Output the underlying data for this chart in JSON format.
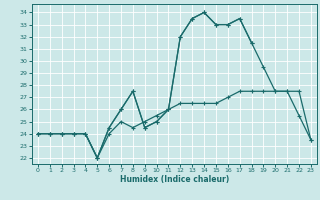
{
  "xlabel": "Humidex (Indice chaleur)",
  "bg_color": "#cce8e8",
  "line_color": "#1a6b6b",
  "grid_color": "#ffffff",
  "xlim": [
    -0.5,
    23.5
  ],
  "ylim": [
    21.5,
    34.7
  ],
  "yticks": [
    22,
    23,
    24,
    25,
    26,
    27,
    28,
    29,
    30,
    31,
    32,
    33,
    34
  ],
  "xticks": [
    0,
    1,
    2,
    3,
    4,
    5,
    6,
    7,
    8,
    9,
    10,
    11,
    12,
    13,
    14,
    15,
    16,
    17,
    18,
    19,
    20,
    21,
    22,
    23
  ],
  "line1_x": [
    0,
    1,
    2,
    3,
    4,
    5,
    6,
    7,
    8,
    9,
    10,
    11,
    12,
    13,
    14,
    15,
    16,
    17,
    18,
    19,
    20,
    21,
    22,
    23
  ],
  "line1_y": [
    24,
    24,
    24,
    24,
    24,
    22,
    24.5,
    26,
    27.5,
    24.5,
    25,
    26,
    32,
    33.5,
    34,
    33,
    33,
    33.5,
    31.5,
    null,
    null,
    null,
    null,
    null
  ],
  "line2_x": [
    0,
    1,
    2,
    3,
    4,
    5,
    6,
    7,
    8,
    9,
    10,
    11,
    12,
    13,
    14,
    15,
    16,
    17,
    18,
    19,
    20,
    21,
    22,
    23
  ],
  "line2_y": [
    24,
    24,
    24,
    24,
    24,
    22,
    24.5,
    26,
    27.5,
    24.5,
    25,
    26,
    32,
    33.5,
    34,
    33,
    33,
    33.5,
    31.5,
    29.5,
    27.5,
    27.5,
    25.5,
    23.5
  ],
  "line3_x": [
    0,
    1,
    2,
    3,
    4,
    5,
    6,
    7,
    8,
    9,
    10,
    11,
    12,
    13,
    14,
    15,
    16,
    17,
    18,
    19,
    20,
    21,
    22,
    23
  ],
  "line3_y": [
    24,
    24,
    24,
    24,
    24,
    22,
    24,
    25,
    24.5,
    25,
    25.5,
    26,
    26.5,
    26.5,
    26.5,
    26.5,
    27,
    27.5,
    27.5,
    27.5,
    27.5,
    27.5,
    27.5,
    23.5
  ]
}
